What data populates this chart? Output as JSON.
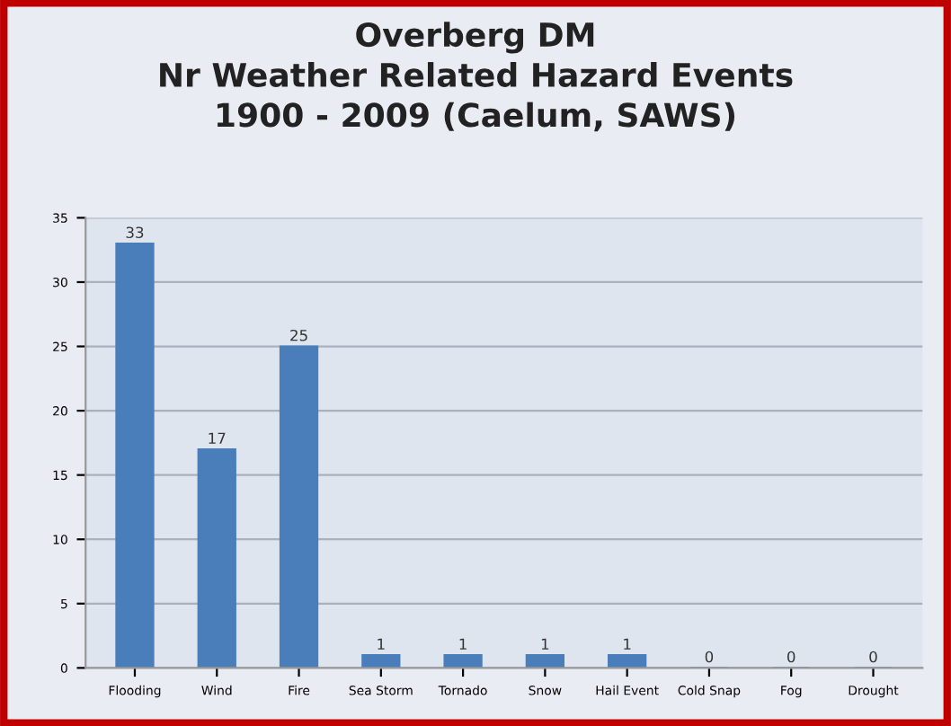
{
  "chart_data": {
    "type": "bar",
    "title": "Overberg DM\nNr Weather Related Hazard Events\n1900 - 2009 (Caelum, SAWS)",
    "categories": [
      "Flooding",
      "Wind",
      "Fire",
      "Sea Storm",
      "Tornado",
      "Snow",
      "Hail Event",
      "Cold Snap",
      "Fog",
      "Drought"
    ],
    "values": [
      33,
      17,
      25,
      1,
      1,
      1,
      1,
      0,
      0,
      0
    ],
    "color": "#4a7ebb",
    "data_labels": true,
    "ylim": [
      0,
      35
    ],
    "yticks": [
      0,
      5,
      10,
      15,
      20,
      25,
      30,
      35
    ],
    "grid": "y",
    "legend": false
  }
}
